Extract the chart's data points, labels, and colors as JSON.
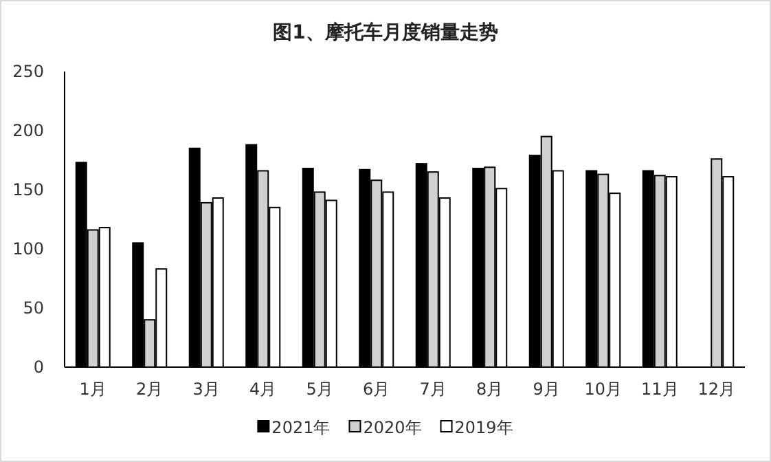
{
  "chart_data": {
    "type": "bar",
    "title": "图1、摩托车月度销量走势",
    "categories": [
      "1月",
      "2月",
      "3月",
      "4月",
      "5月",
      "6月",
      "7月",
      "8月",
      "9月",
      "10月",
      "11月",
      "12月"
    ],
    "series": [
      {
        "name": "2021年",
        "color": "#000000",
        "values": [
          173,
          105,
          185,
          188,
          168,
          167,
          172,
          168,
          179,
          166,
          166,
          null
        ]
      },
      {
        "name": "2020年",
        "color": "#d0d0d0",
        "values": [
          116,
          40,
          139,
          166,
          148,
          158,
          165,
          169,
          195,
          163,
          162,
          176
        ]
      },
      {
        "name": "2019年",
        "color": "#ffffff",
        "values": [
          118,
          83,
          143,
          135,
          141,
          148,
          143,
          151,
          166,
          147,
          161,
          161
        ]
      }
    ],
    "ylim": [
      0,
      250
    ],
    "yticks": [
      0,
      50,
      100,
      150,
      200,
      250
    ],
    "grid": false,
    "legend": "bottom"
  }
}
